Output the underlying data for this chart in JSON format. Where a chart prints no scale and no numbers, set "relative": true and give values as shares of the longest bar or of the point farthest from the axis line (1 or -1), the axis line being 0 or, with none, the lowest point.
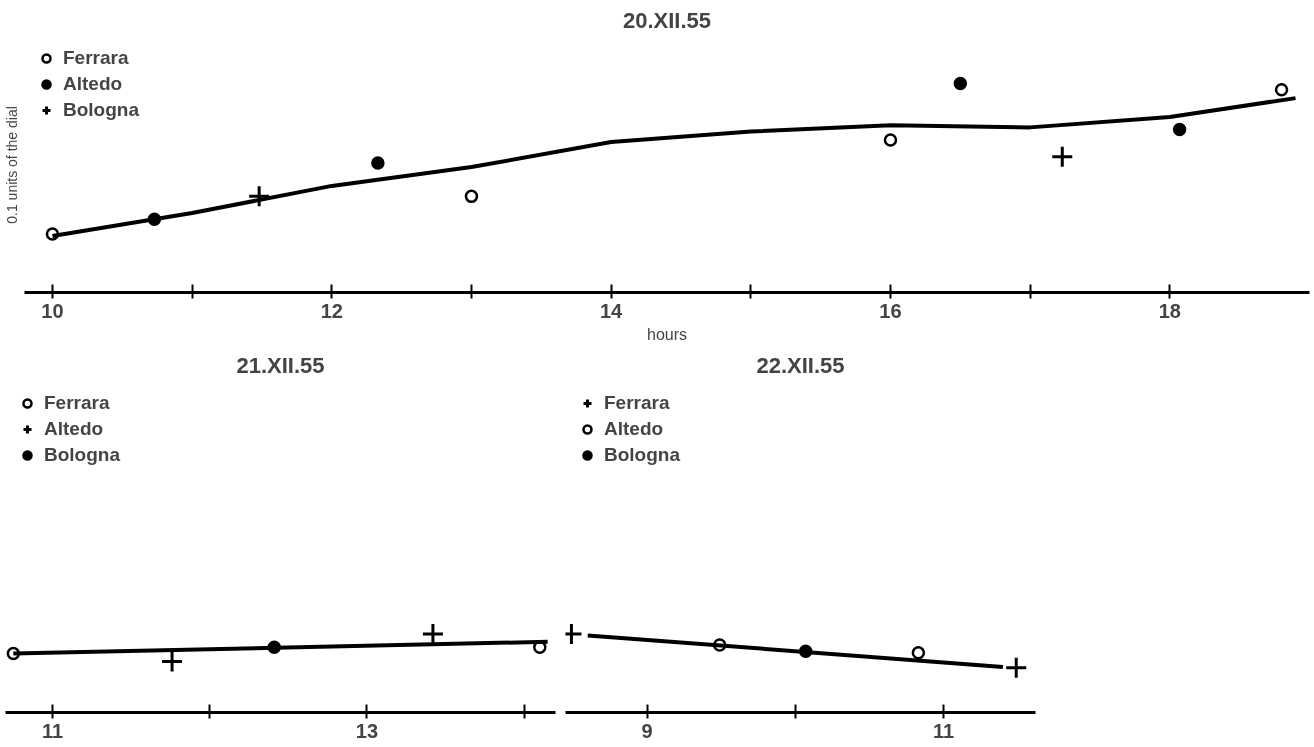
{
  "chart_data": [
    {
      "type": "scatter",
      "title": "20.XII.55",
      "xlabel": "hours",
      "ylabel": "0.1 units of the dial",
      "relative": true,
      "xlim": [
        9.8,
        19.0
      ],
      "xticks": [
        10,
        {
          "value": 11,
          "label": null
        },
        12,
        {
          "value": 13,
          "label": null
        },
        14,
        {
          "value": 15,
          "label": null
        },
        16,
        {
          "value": 17,
          "label": null
        },
        18
      ],
      "tick_labels": "x",
      "grid": false,
      "legend": "top left",
      "series": [
        {
          "name": "Ferrara",
          "color": "#ffffff",
          "marker": "circle",
          "x": [
            10.0,
            13.0,
            16.0,
            18.8
          ],
          "values": [
            0.28,
            0.46,
            0.73,
            0.97
          ]
        },
        {
          "name": "Altedo",
          "color": "#000000",
          "marker": "circle",
          "x": [
            10.73,
            12.33,
            16.5,
            18.07
          ],
          "values": [
            0.35,
            0.62,
            1.0,
            0.78
          ]
        },
        {
          "name": "Bologna",
          "color": "#000000",
          "marker": "cross",
          "x": [
            11.48,
            17.23
          ],
          "values": [
            0.46,
            0.65
          ]
        },
        {
          "type": "line",
          "color": "#000000",
          "marker": "none",
          "x": [
            10,
            11,
            12,
            13,
            14,
            15,
            16,
            17,
            18,
            18.9
          ],
          "values": [
            0.27,
            0.38,
            0.51,
            0.6,
            0.72,
            0.77,
            0.8,
            0.79,
            0.84,
            0.93
          ]
        }
      ]
    },
    {
      "type": "scatter",
      "title": "21.XII.55",
      "relative": true,
      "xlim": [
        10.7,
        14.2
      ],
      "xticks": [
        11,
        {
          "value": 12,
          "label": null
        },
        13,
        {
          "value": 14,
          "label": null
        }
      ],
      "tick_labels": "x",
      "grid": false,
      "legend": "top left",
      "series": [
        {
          "name": "Ferrara",
          "color": "#ffffff",
          "marker": "circle",
          "x": [
            10.75,
            14.1
          ],
          "values": [
            0.75,
            0.83
          ]
        },
        {
          "name": "Altedo",
          "color": "#000000",
          "marker": "cross",
          "x": [
            11.76,
            13.42
          ],
          "values": [
            0.65,
            1.0
          ]
        },
        {
          "name": "Bologna",
          "color": "#000000",
          "marker": "circle",
          "x": [
            12.41
          ],
          "values": [
            0.83
          ]
        },
        {
          "type": "line",
          "color": "#000000",
          "marker": "none",
          "x": [
            10.75,
            14.15
          ],
          "values": [
            0.75,
            0.9
          ]
        }
      ]
    },
    {
      "type": "scatter",
      "title": "22.XII.55",
      "relative": true,
      "xlim": [
        8.45,
        11.62
      ],
      "xticks": [
        9,
        {
          "value": 10,
          "label": null
        },
        11
      ],
      "tick_labels": "x",
      "grid": false,
      "legend": "top left",
      "series": [
        {
          "name": "Ferrara",
          "color": "#000000",
          "marker": "cross",
          "x": [
            8.49,
            11.49
          ],
          "values": [
            1.0,
            0.57
          ]
        },
        {
          "name": "Altedo",
          "color": "#ffffff",
          "marker": "circle",
          "x": [
            9.49,
            10.83
          ],
          "values": [
            0.86,
            0.76
          ]
        },
        {
          "name": "Bologna",
          "color": "#000000",
          "marker": "circle",
          "x": [
            10.07
          ],
          "values": [
            0.78
          ]
        },
        {
          "type": "line",
          "color": "#000000",
          "marker": "none",
          "x": [
            8.6,
            11.4
          ],
          "values": [
            0.98,
            0.58
          ]
        }
      ]
    }
  ]
}
